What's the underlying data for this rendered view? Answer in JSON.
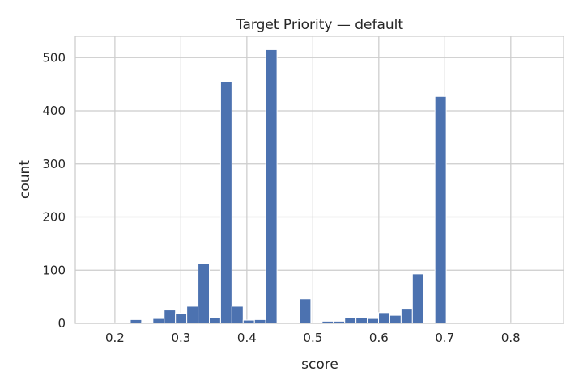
{
  "chart_data": {
    "type": "bar",
    "title": "Target Priority — default",
    "xlabel": "score",
    "ylabel": "count",
    "xlim": [
      0.14,
      0.88
    ],
    "ylim": [
      0,
      540
    ],
    "xticks": [
      0.2,
      0.3,
      0.4,
      0.5,
      0.6,
      0.7,
      0.8
    ],
    "xtick_labels": [
      "0.2",
      "0.3",
      "0.4",
      "0.5",
      "0.6",
      "0.7",
      "0.8"
    ],
    "yticks": [
      0,
      100,
      200,
      300,
      400,
      500
    ],
    "ytick_labels": [
      "0",
      "100",
      "200",
      "300",
      "400",
      "500"
    ],
    "grid": true,
    "bar_color": "#4c72b0",
    "bin_start": 0.155,
    "bin_width": 0.0171,
    "values": [
      0,
      0,
      1,
      2,
      7,
      2,
      9,
      25,
      19,
      32,
      113,
      11,
      455,
      32,
      6,
      7,
      515,
      0,
      0,
      46,
      1,
      4,
      4,
      10,
      10,
      9,
      20,
      15,
      28,
      93,
      1,
      427,
      1,
      1,
      1,
      1,
      1,
      1,
      2,
      1,
      2,
      1,
      1
    ]
  }
}
